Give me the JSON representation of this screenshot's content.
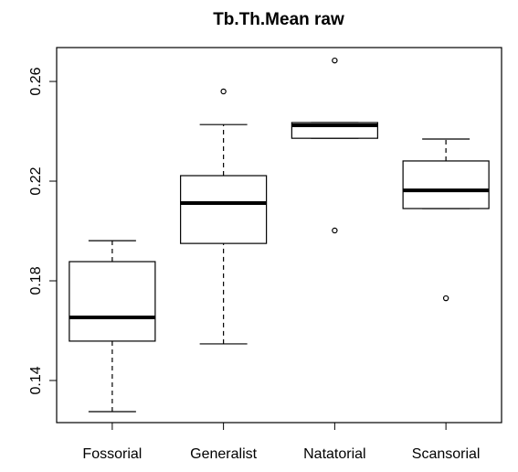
{
  "chart_data": {
    "type": "box",
    "title": "Tb.Th.Mean raw",
    "categories": [
      "Fossorial",
      "Generalist",
      "Natatorial",
      "Scansorial"
    ],
    "boxes": [
      {
        "min": 0.1275,
        "q1": 0.1558,
        "median": 0.1653,
        "q3": 0.1877,
        "max": 0.1961,
        "outliers": []
      },
      {
        "min": 0.1547,
        "q1": 0.195,
        "median": 0.2112,
        "q3": 0.2222,
        "max": 0.2427,
        "outliers": [
          0.256
        ]
      },
      {
        "min": 0.2372,
        "q1": 0.2372,
        "median": 0.2424,
        "q3": 0.2435,
        "max": 0.2435,
        "outliers": [
          0.2684,
          0.2002
        ]
      },
      {
        "min": 0.209,
        "q1": 0.209,
        "median": 0.2163,
        "q3": 0.2281,
        "max": 0.2369,
        "outliers": [
          0.173
        ]
      }
    ],
    "ylim": [
      0.1231,
      0.2736
    ],
    "yticks": [
      0.14,
      0.18,
      0.22,
      0.26
    ]
  }
}
